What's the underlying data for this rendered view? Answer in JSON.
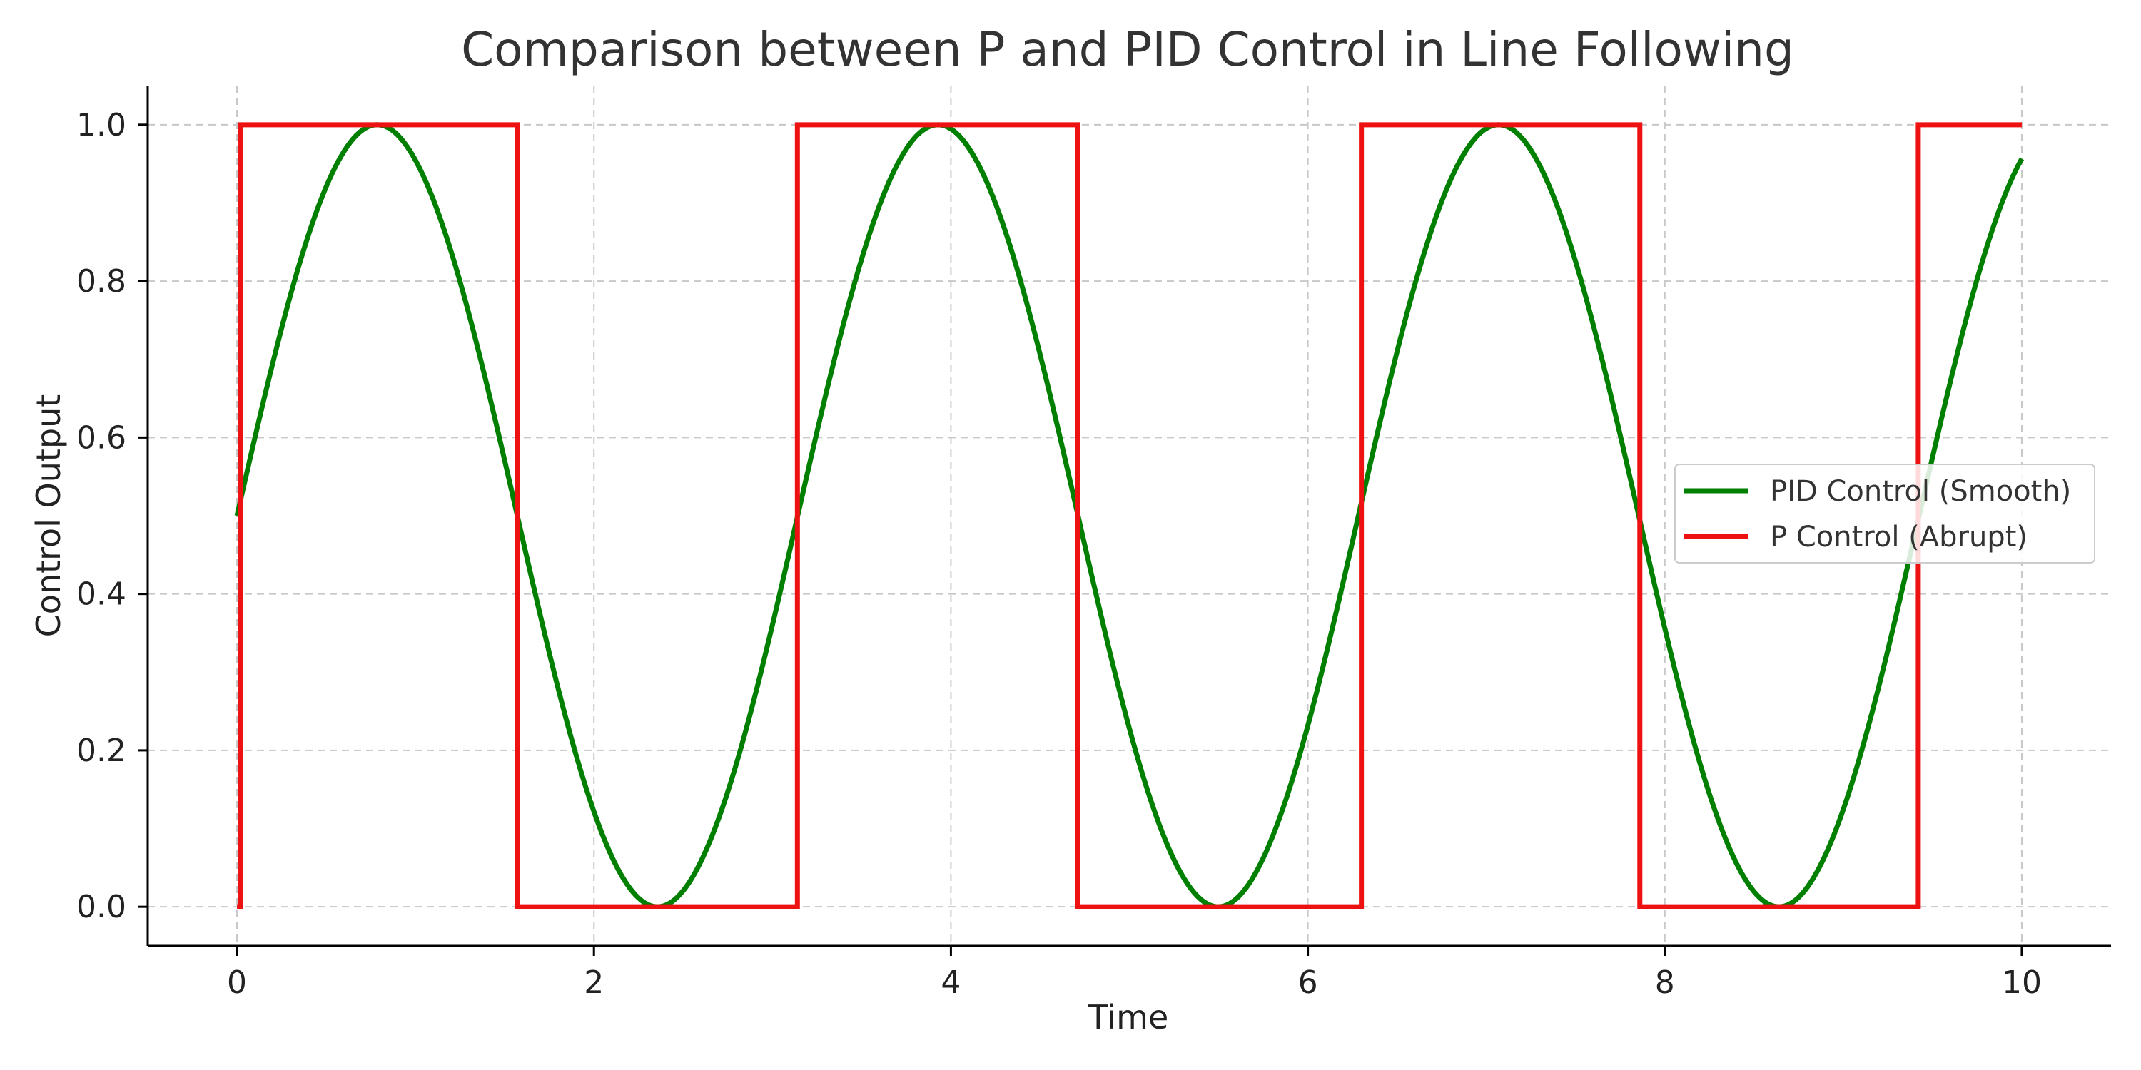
{
  "chart_data": {
    "type": "line",
    "title": "Comparison between P and PID Control in Line Following",
    "xlabel": "Time",
    "ylabel": "Control Output",
    "xlim": [
      -0.5,
      10.5
    ],
    "ylim": [
      -0.05,
      1.05
    ],
    "x_ticks": [
      0,
      2,
      4,
      6,
      8,
      10
    ],
    "y_ticks": [
      0.0,
      0.2,
      0.4,
      0.6,
      0.8,
      1.0
    ],
    "x_tick_labels": [
      "0",
      "2",
      "4",
      "6",
      "8",
      "10"
    ],
    "y_tick_labels": [
      "0.0",
      "0.2",
      "0.4",
      "0.6",
      "0.8",
      "1.0"
    ],
    "grid": true,
    "legend_position": "center-right",
    "series": [
      {
        "name": "PID Control (Smooth)",
        "color": "#007f00",
        "style": "smooth",
        "formula": "0.5 + 0.5*sin(2*t)",
        "x_range": [
          0,
          10
        ]
      },
      {
        "name": "P Control (Abrupt)",
        "color": "#ee1111",
        "style": "step",
        "x": [
          0,
          0.02,
          0.02,
          1.57,
          1.57,
          3.14,
          3.14,
          4.71,
          4.71,
          6.3,
          6.3,
          7.86,
          7.86,
          9.42,
          9.42,
          10.0
        ],
        "y": [
          0,
          0,
          1,
          1,
          0,
          0,
          1,
          1,
          0,
          0,
          1,
          1,
          0,
          0,
          1,
          1
        ]
      }
    ]
  }
}
